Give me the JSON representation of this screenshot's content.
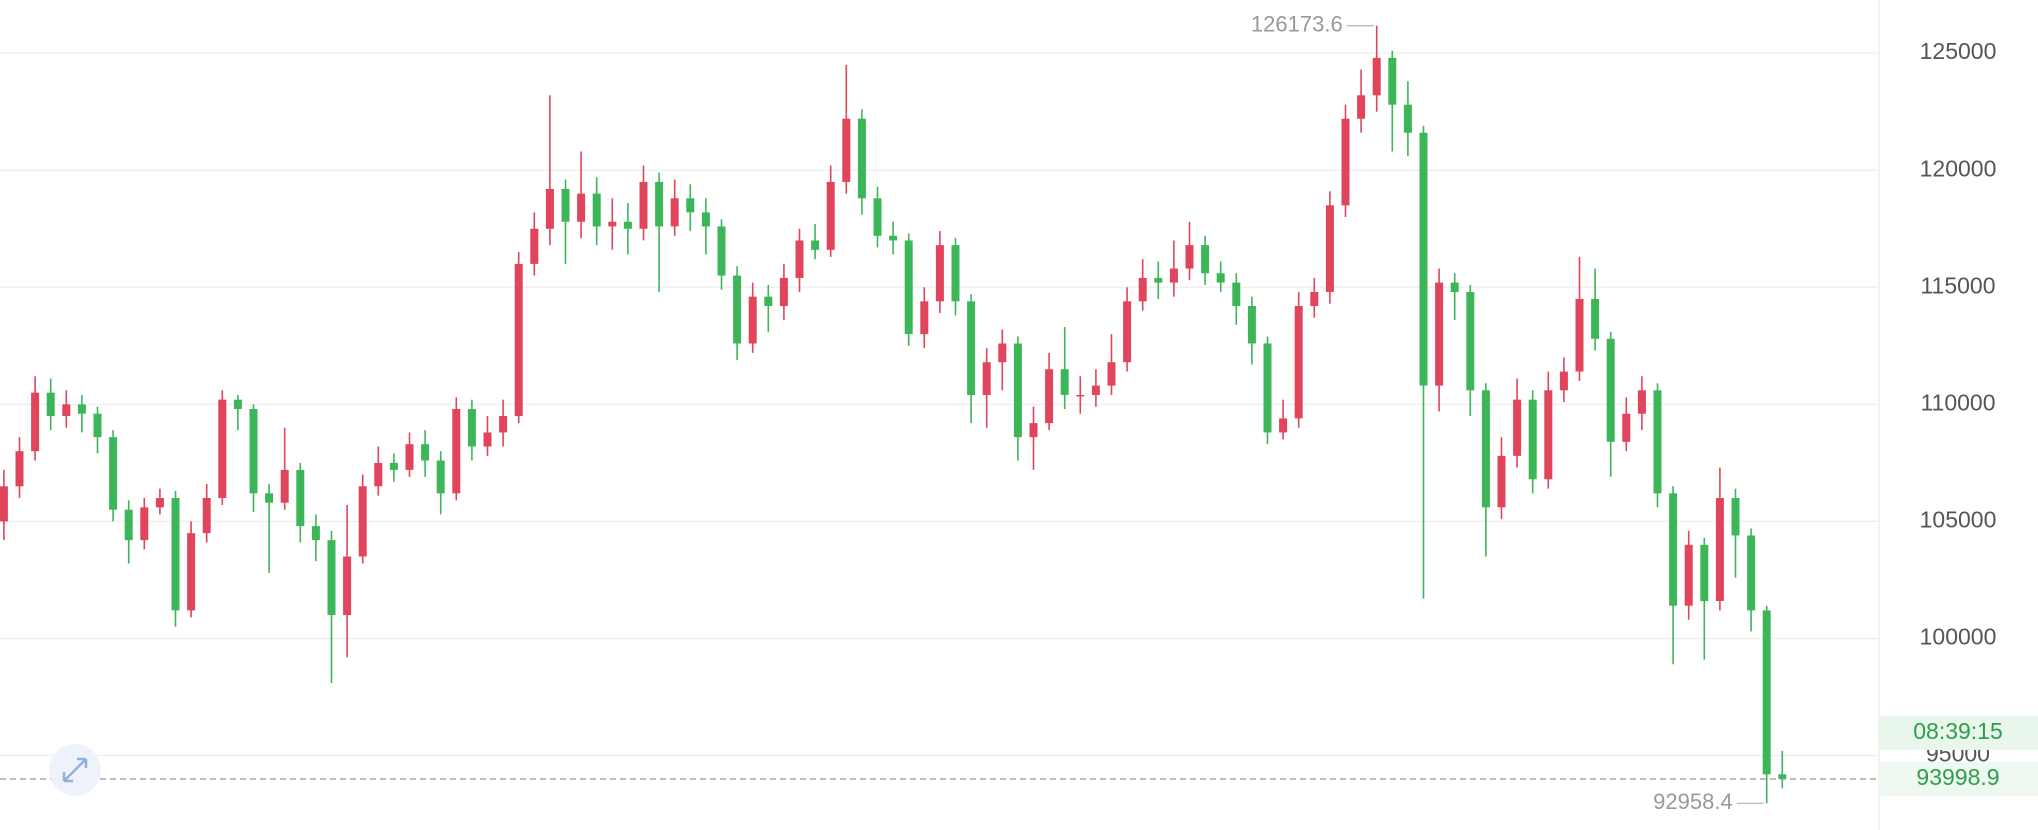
{
  "chart_data": {
    "type": "candlestick",
    "up_color": "#e0455b",
    "down_color": "#3db65a",
    "ylim": [
      91820,
      127270
    ],
    "yticks": [
      95000,
      100000,
      105000,
      110000,
      115000,
      120000,
      125000
    ],
    "grid": true,
    "high_marker": 126173.6,
    "low_marker": 92958.4,
    "last_price": 93998.9,
    "countdown": "08:39:15",
    "candles": [
      [
        105000,
        107200,
        104200,
        106500
      ],
      [
        106500,
        108600,
        106000,
        108000
      ],
      [
        108000,
        111200,
        107600,
        110500
      ],
      [
        110500,
        111100,
        108900,
        109500
      ],
      [
        109500,
        110600,
        109000,
        110000
      ],
      [
        110000,
        110400,
        108800,
        109600
      ],
      [
        109600,
        109900,
        107900,
        108600
      ],
      [
        108600,
        108900,
        105000,
        105500
      ],
      [
        105500,
        105900,
        103200,
        104200
      ],
      [
        104200,
        106000,
        103800,
        105600
      ],
      [
        105600,
        106400,
        105300,
        106000
      ],
      [
        106000,
        106300,
        100500,
        101200
      ],
      [
        101200,
        105000,
        100900,
        104500
      ],
      [
        104500,
        106600,
        104100,
        106000
      ],
      [
        106000,
        110600,
        105700,
        110200
      ],
      [
        110200,
        110400,
        108900,
        109800
      ],
      [
        109800,
        110000,
        105400,
        106200
      ],
      [
        106200,
        106600,
        102800,
        105800
      ],
      [
        105800,
        109000,
        105500,
        107200
      ],
      [
        107200,
        107500,
        104100,
        104800
      ],
      [
        104800,
        105300,
        103300,
        104200
      ],
      [
        104200,
        104600,
        98100,
        101000
      ],
      [
        101000,
        105700,
        99200,
        103500
      ],
      [
        103500,
        107000,
        103200,
        106500
      ],
      [
        106500,
        108200,
        106100,
        107500
      ],
      [
        107500,
        107900,
        106700,
        107200
      ],
      [
        107200,
        108800,
        106900,
        108300
      ],
      [
        108300,
        108900,
        106900,
        107600
      ],
      [
        107600,
        108000,
        105300,
        106200
      ],
      [
        106200,
        110300,
        105900,
        109800
      ],
      [
        109800,
        110200,
        107600,
        108200
      ],
      [
        108200,
        109500,
        107800,
        108800
      ],
      [
        108800,
        110200,
        108200,
        109500
      ],
      [
        109500,
        116500,
        109200,
        116000
      ],
      [
        116000,
        118200,
        115500,
        117500
      ],
      [
        117500,
        123200,
        116800,
        119200
      ],
      [
        119200,
        119600,
        116000,
        117800
      ],
      [
        117800,
        120800,
        117100,
        119000
      ],
      [
        119000,
        119700,
        116800,
        117600
      ],
      [
        117600,
        118800,
        116600,
        117800
      ],
      [
        117800,
        118600,
        116400,
        117500
      ],
      [
        117500,
        120200,
        117000,
        119500
      ],
      [
        119500,
        119900,
        114800,
        117600
      ],
      [
        117600,
        119600,
        117200,
        118800
      ],
      [
        118800,
        119400,
        117400,
        118200
      ],
      [
        118200,
        118800,
        116400,
        117600
      ],
      [
        117600,
        117900,
        114900,
        115500
      ],
      [
        115500,
        115900,
        111900,
        112600
      ],
      [
        112600,
        115200,
        112200,
        114600
      ],
      [
        114600,
        115100,
        113100,
        114200
      ],
      [
        114200,
        116000,
        113600,
        115400
      ],
      [
        115400,
        117500,
        114800,
        117000
      ],
      [
        117000,
        117700,
        116200,
        116600
      ],
      [
        116600,
        120200,
        116300,
        119500
      ],
      [
        119500,
        124500,
        119000,
        122200
      ],
      [
        122200,
        122600,
        118100,
        118800
      ],
      [
        118800,
        119300,
        116700,
        117200
      ],
      [
        117200,
        117800,
        116400,
        117000
      ],
      [
        117000,
        117300,
        112500,
        113000
      ],
      [
        113000,
        115000,
        112400,
        114400
      ],
      [
        114400,
        117400,
        113900,
        116800
      ],
      [
        116800,
        117100,
        113800,
        114400
      ],
      [
        114400,
        114700,
        109200,
        110400
      ],
      [
        110400,
        112400,
        109000,
        111800
      ],
      [
        111800,
        113200,
        110600,
        112600
      ],
      [
        112600,
        112900,
        107600,
        108600
      ],
      [
        108600,
        109900,
        107200,
        109200
      ],
      [
        109200,
        112200,
        108900,
        111500
      ],
      [
        111500,
        113300,
        109800,
        110400
      ],
      [
        110400,
        111200,
        109600,
        110400
      ],
      [
        110400,
        111500,
        109900,
        110800
      ],
      [
        110800,
        113000,
        110400,
        111800
      ],
      [
        111800,
        115000,
        111400,
        114400
      ],
      [
        114400,
        116200,
        114000,
        115400
      ],
      [
        115400,
        116100,
        114500,
        115200
      ],
      [
        115200,
        117000,
        114600,
        115800
      ],
      [
        115800,
        117800,
        115300,
        116800
      ],
      [
        116800,
        117200,
        115100,
        115600
      ],
      [
        115600,
        116100,
        114800,
        115200
      ],
      [
        115200,
        115600,
        113400,
        114200
      ],
      [
        114200,
        114600,
        111700,
        112600
      ],
      [
        112600,
        112900,
        108300,
        108800
      ],
      [
        108800,
        110200,
        108500,
        109400
      ],
      [
        109400,
        114800,
        109000,
        114200
      ],
      [
        114200,
        115400,
        113700,
        114800
      ],
      [
        114800,
        119100,
        114300,
        118500
      ],
      [
        118500,
        122800,
        118000,
        122200
      ],
      [
        122200,
        124300,
        121600,
        123200
      ],
      [
        123200,
        126173.6,
        122500,
        124800
      ],
      [
        124800,
        125100,
        120800,
        122800
      ],
      [
        122800,
        123800,
        120600,
        121600
      ],
      [
        121600,
        121900,
        101700,
        110800
      ],
      [
        110800,
        115800,
        109700,
        115200
      ],
      [
        115200,
        115600,
        113600,
        114800
      ],
      [
        114800,
        115100,
        109500,
        110600
      ],
      [
        110600,
        110900,
        103500,
        105600
      ],
      [
        105600,
        108600,
        105100,
        107800
      ],
      [
        107800,
        111100,
        107300,
        110200
      ],
      [
        110200,
        110600,
        106200,
        106800
      ],
      [
        106800,
        111400,
        106400,
        110600
      ],
      [
        110600,
        112000,
        110100,
        111400
      ],
      [
        111400,
        116300,
        111000,
        114500
      ],
      [
        114500,
        115800,
        112300,
        112800
      ],
      [
        112800,
        113100,
        106900,
        108400
      ],
      [
        108400,
        110300,
        108000,
        109600
      ],
      [
        109600,
        111200,
        108900,
        110600
      ],
      [
        110600,
        110900,
        105600,
        106200
      ],
      [
        106200,
        106500,
        98900,
        101400
      ],
      [
        101400,
        104600,
        100800,
        104000
      ],
      [
        104000,
        104300,
        99100,
        101600
      ],
      [
        101600,
        107300,
        101200,
        106000
      ],
      [
        106000,
        106400,
        102600,
        104400
      ],
      [
        104400,
        104700,
        100300,
        101200
      ],
      [
        101200,
        101400,
        92958.4,
        94200
      ],
      [
        94200,
        95200,
        93600,
        93998.9
      ]
    ]
  }
}
